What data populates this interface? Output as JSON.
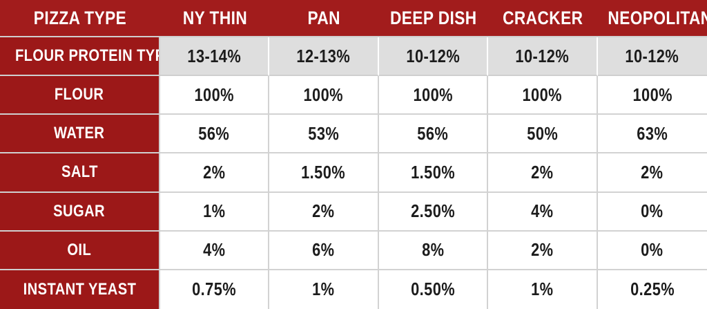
{
  "table": {
    "header": {
      "corner": "PIZZA TYPE",
      "columns": [
        "NY THIN",
        "PAN",
        "DEEP DISH",
        "CRACKER",
        "NEOPOLITAN"
      ]
    },
    "rows": [
      {
        "label": "FLOUR PROTEIN TYPE",
        "values": [
          "13-14%",
          "12-13%",
          "10-12%",
          "10-12%",
          "10-12%"
        ]
      },
      {
        "label": "FLOUR",
        "values": [
          "100%",
          "100%",
          "100%",
          "100%",
          "100%"
        ]
      },
      {
        "label": "WATER",
        "values": [
          "56%",
          "53%",
          "56%",
          "50%",
          "63%"
        ]
      },
      {
        "label": "SALT",
        "values": [
          "2%",
          "1.50%",
          "1.50%",
          "2%",
          "2%"
        ]
      },
      {
        "label": "SUGAR",
        "values": [
          "1%",
          "2%",
          "2.50%",
          "4%",
          "0%"
        ]
      },
      {
        "label": "OIL",
        "values": [
          "4%",
          "6%",
          "8%",
          "2%",
          "0%"
        ]
      },
      {
        "label": "INSTANT YEAST",
        "values": [
          "0.75%",
          "1%",
          "0.50%",
          "1%",
          "0.25%"
        ]
      }
    ],
    "colors": {
      "header_bg": "#A21C1C",
      "label_bg": "#9C1818",
      "highlight_row_bg": "#DEDEDE",
      "grid_line": "#D2D2D2",
      "header_text": "#FFFFFF",
      "value_text": "#1C1C1C"
    }
  },
  "chart_data": {
    "type": "table",
    "columns": [
      "PIZZA TYPE",
      "NY THIN",
      "PAN",
      "DEEP DISH",
      "CRACKER",
      "NEOPOLITAN"
    ],
    "rows": [
      [
        "FLOUR PROTEIN TYPE",
        "13-14%",
        "12-13%",
        "10-12%",
        "10-12%",
        "10-12%"
      ],
      [
        "FLOUR",
        "100%",
        "100%",
        "100%",
        "100%",
        "100%"
      ],
      [
        "WATER",
        "56%",
        "53%",
        "56%",
        "50%",
        "63%"
      ],
      [
        "SALT",
        "2%",
        "1.50%",
        "1.50%",
        "2%",
        "2%"
      ],
      [
        "SUGAR",
        "1%",
        "2%",
        "2.50%",
        "4%",
        "0%"
      ],
      [
        "OIL",
        "4%",
        "6%",
        "8%",
        "2%",
        "0%"
      ],
      [
        "INSTANT YEAST",
        "0.75%",
        "1%",
        "0.50%",
        "1%",
        "0.25%"
      ]
    ],
    "layout_hints": {
      "header_row_style": "dark-red background, white condensed bold uppercase text",
      "label_column_style": "dark-red background, white text",
      "first_body_row_style": "light-gray background",
      "grid": "light gray lines between cells"
    }
  }
}
